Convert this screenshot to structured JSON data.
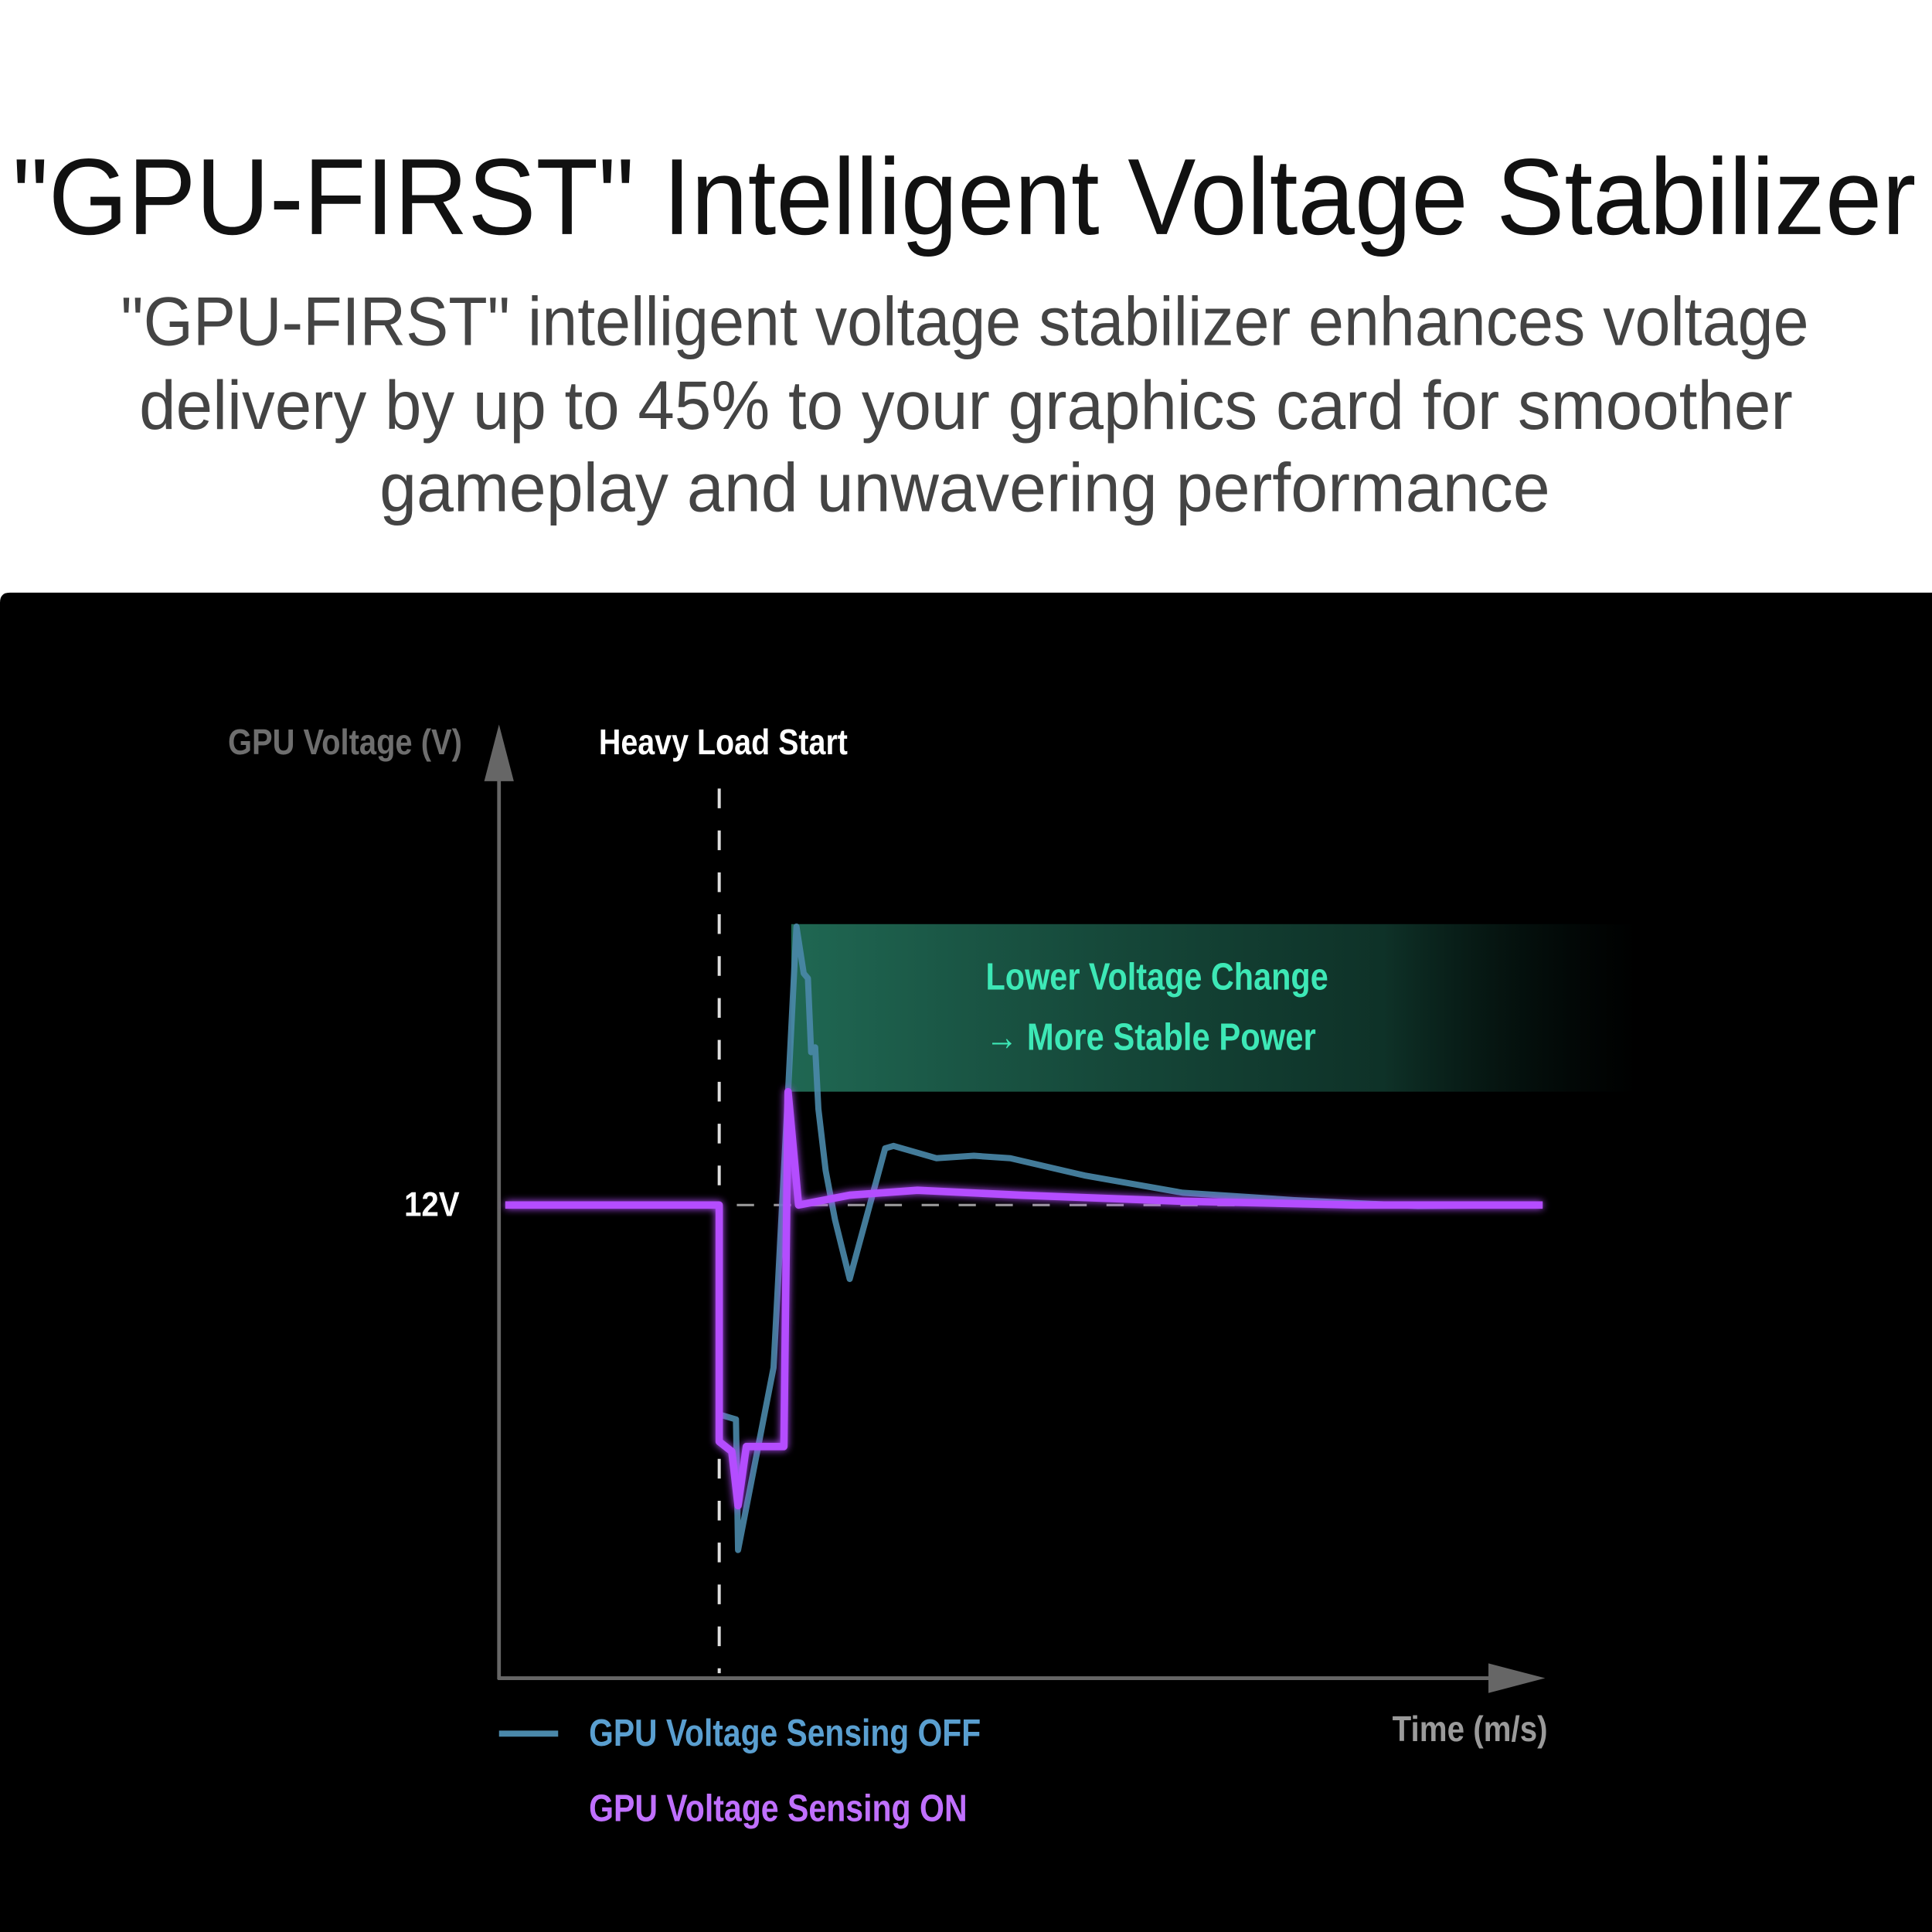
{
  "header": {
    "title": "\"GPU-FIRST\" Intelligent Voltage Stabilizer",
    "subtitle_lines": [
      "\"GPU-FIRST\" intelligent voltage stabilizer enhances voltage",
      "delivery by up to 45% to your graphics card for smoother",
      "gameplay and unwavering performance"
    ]
  },
  "chart_data": {
    "type": "line",
    "ylabel": "GPU Voltage (V)",
    "xlabel": "Time (m/s)",
    "y_tick_label": "12V",
    "reference_value": 12,
    "xlim": [
      0,
      100
    ],
    "ylim": [
      2.4,
      21.7
    ],
    "grid": false,
    "legend_placement": "bottom-left",
    "annotations": {
      "event_label": "Heavy Load Start",
      "event_x": 21.1,
      "band": {
        "y_min": 14.3,
        "y_max": 17.7,
        "x_start": 28.0,
        "lines": [
          "Lower Voltage Change",
          "→ More Stable Power"
        ],
        "color": "#3de8b6"
      }
    },
    "series": [
      {
        "name": "GPU Voltage Sensing OFF",
        "color": "#4a88aa",
        "points": [
          [
            0.6,
            12
          ],
          [
            21.1,
            12
          ],
          [
            21.1,
            7.75
          ],
          [
            22.7,
            7.65
          ],
          [
            22.9,
            5.0
          ],
          [
            26.3,
            8.7
          ],
          [
            27.7,
            14.3
          ],
          [
            28.5,
            17.65
          ],
          [
            29.2,
            16.7
          ],
          [
            29.6,
            16.6
          ],
          [
            29.9,
            15.1
          ],
          [
            30.3,
            15.2
          ],
          [
            30.6,
            13.95
          ],
          [
            31.3,
            12.7
          ],
          [
            32.2,
            11.7
          ],
          [
            33.6,
            10.5
          ],
          [
            37.0,
            13.15
          ],
          [
            37.8,
            13.2
          ],
          [
            41.9,
            12.95
          ],
          [
            45.5,
            13.0
          ],
          [
            49.0,
            12.95
          ],
          [
            56.1,
            12.6
          ],
          [
            65.5,
            12.25
          ],
          [
            76.2,
            12.1
          ],
          [
            88.0,
            11.98
          ],
          [
            100,
            12
          ]
        ]
      },
      {
        "name": "GPU Voltage Sensing ON",
        "color": "#b44dff",
        "points": [
          [
            0.6,
            12
          ],
          [
            21.1,
            12
          ],
          [
            21.1,
            7.2
          ],
          [
            22.3,
            7.0
          ],
          [
            22.9,
            5.9
          ],
          [
            23.7,
            7.1
          ],
          [
            27.3,
            7.1
          ],
          [
            27.7,
            14.3
          ],
          [
            28.7,
            12.0
          ],
          [
            33.6,
            12.2
          ],
          [
            40.1,
            12.3
          ],
          [
            50.0,
            12.2
          ],
          [
            65.0,
            12.08
          ],
          [
            82.1,
            12.0
          ],
          [
            100,
            12
          ]
        ]
      }
    ]
  }
}
